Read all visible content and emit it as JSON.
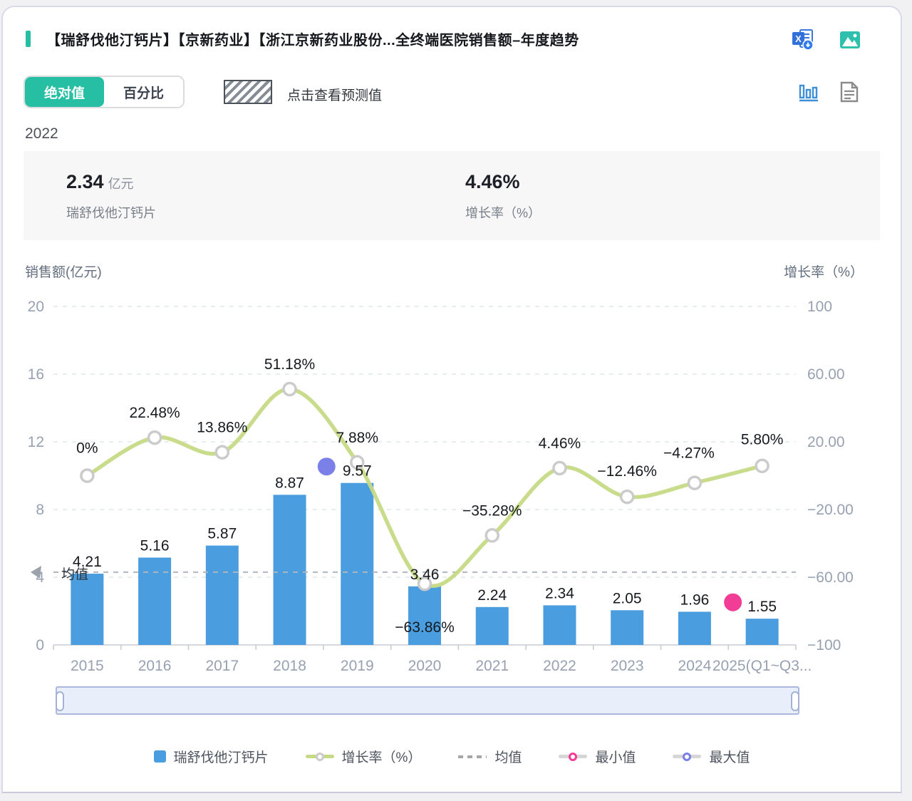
{
  "header": {
    "title": "【瑞舒伐他汀钙片】【京新药业】【浙江京新药业股份...全终端医院销售额–年度趋势"
  },
  "controls": {
    "toggle_absolute": "绝对值",
    "toggle_percent": "百分比",
    "forecast_hint": "点击查看预测值"
  },
  "summary": {
    "year": "2022",
    "sales_value": "2.34",
    "sales_unit": "亿元",
    "sales_label": "瑞舒伐他汀钙片",
    "growth_value": "4.46%",
    "growth_label": "增长率（%）"
  },
  "chart_data": {
    "type": "bar+line-dual-axis",
    "categories": [
      "2015",
      "2016",
      "2017",
      "2018",
      "2019",
      "2020",
      "2021",
      "2022",
      "2023",
      "2024",
      "2025(Q1~Q3..."
    ],
    "series": [
      {
        "name": "瑞舒伐他汀钙片",
        "type": "bar",
        "values": [
          4.21,
          5.16,
          5.87,
          8.87,
          9.57,
          3.46,
          2.24,
          2.34,
          2.05,
          1.96,
          1.55
        ],
        "labels": [
          "4.21",
          "5.16",
          "5.87",
          "8.87",
          "9.57",
          "3.46",
          "2.24",
          "2.34",
          "2.05",
          "1.96",
          "1.55"
        ]
      },
      {
        "name": "增长率（%）",
        "type": "line",
        "values": [
          0,
          22.48,
          13.86,
          51.18,
          7.88,
          -63.86,
          -35.28,
          4.46,
          -12.46,
          -4.27,
          5.8
        ],
        "labels": [
          "0%",
          "22.48%",
          "13.86%",
          "51.18%",
          "7.88%",
          "−63.86%",
          "−35.28%",
          "4.46%",
          "−12.46%",
          "−4.27%",
          "5.80%"
        ]
      }
    ],
    "y_left": {
      "title": "销售额(亿元)",
      "ticks": [
        "20",
        "16",
        "12",
        "8",
        "4",
        "0"
      ],
      "min": 0,
      "max": 20,
      "grid": true
    },
    "y_right": {
      "title": "增长率（%）",
      "ticks": [
        "100",
        "60.00",
        "20.00",
        "−20.00",
        "−60.00",
        "−100"
      ],
      "min": -100,
      "max": 100
    },
    "mean": {
      "label": "均值",
      "value": 4.3
    },
    "max_marker": {
      "index": 4,
      "value": 9.57,
      "label_for": "2019"
    },
    "min_marker": {
      "index": 10,
      "value": 1.55,
      "label_for": "2025(Q1~Q3..."
    },
    "layout_hints": {
      "pct_label_dy": [
        -32,
        -28,
        -28,
        -28,
        -28,
        54,
        -28,
        -28,
        -29,
        -35,
        -30
      ],
      "pct_label_dx": [
        0,
        0,
        0,
        0,
        0,
        0,
        0,
        0,
        0,
        -8,
        0
      ],
      "legend_position": "bottom"
    }
  },
  "legend": {
    "items": [
      {
        "label": "瑞舒伐他汀钙片",
        "swatch": "bar"
      },
      {
        "label": "增长率（%）",
        "swatch": "line"
      },
      {
        "label": "均值",
        "swatch": "dashed"
      },
      {
        "label": "最小值",
        "swatch": "min-ring"
      },
      {
        "label": "最大值",
        "swatch": "max-ring"
      }
    ]
  },
  "colors": {
    "accent_teal": "#27bfa3",
    "bar_blue": "#4a9dde",
    "line_green": "#c6da86",
    "marker_ring": "#cbcbcb",
    "grid": "#dfe8e8",
    "axis_text": "#97a1b1",
    "mean_dash": "#afb6be",
    "min_pink": "#f23d96",
    "max_purple": "#7a80e8",
    "slider_fill": "#e9eefb"
  }
}
